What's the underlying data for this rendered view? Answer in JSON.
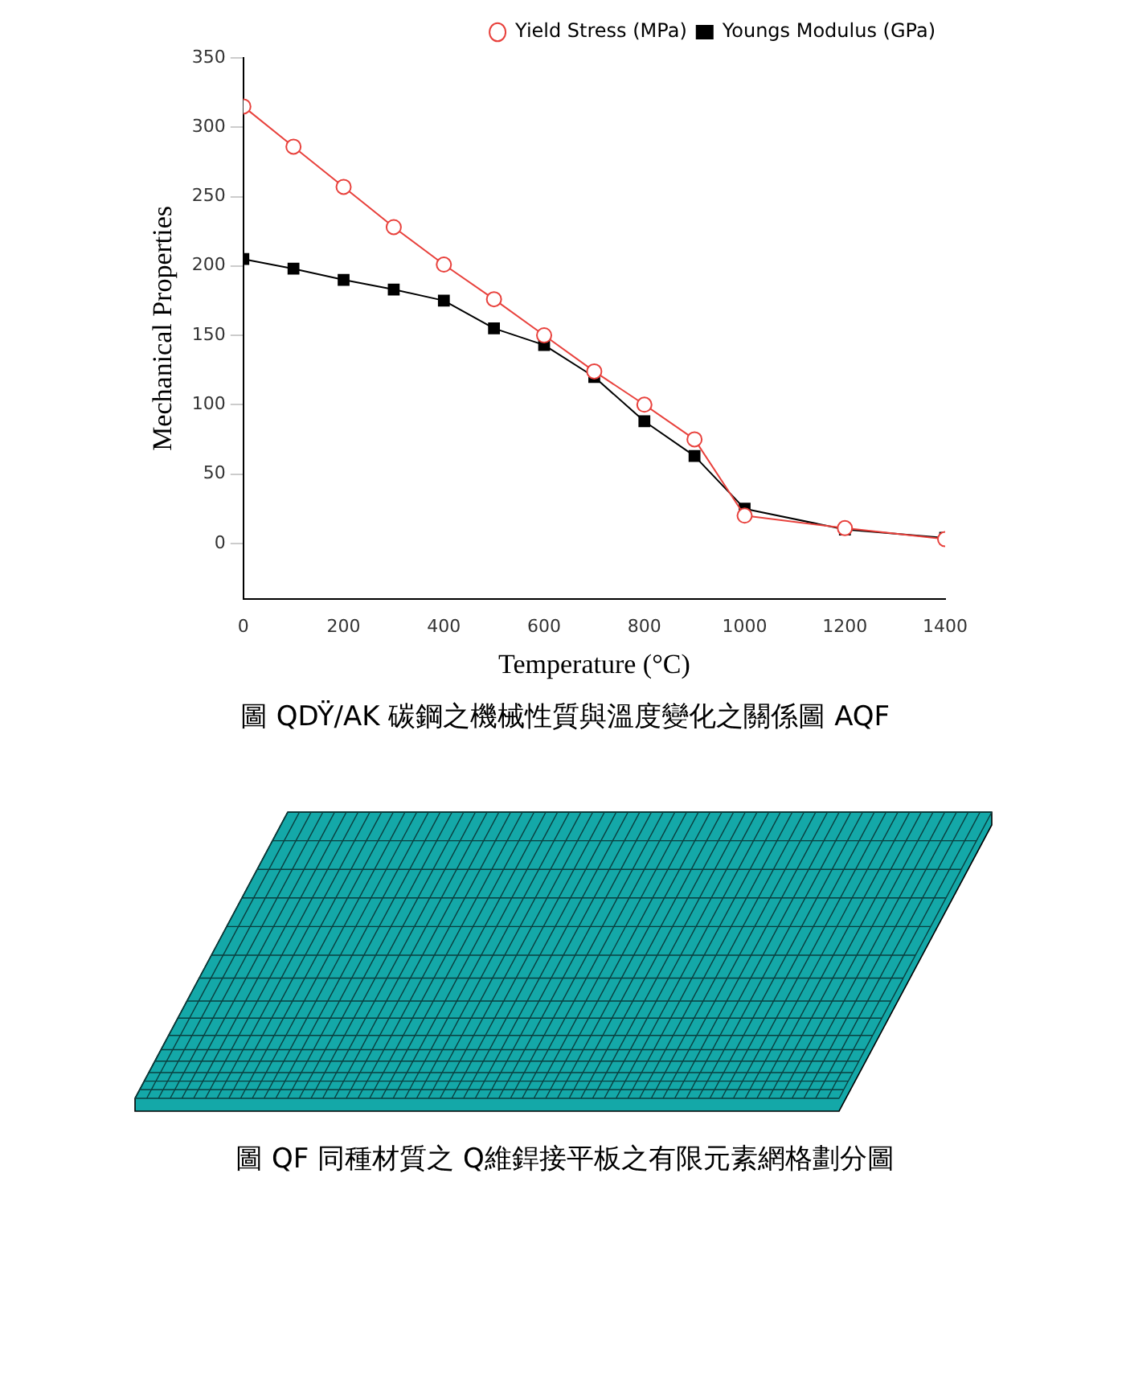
{
  "chart_data": {
    "type": "line",
    "xlabel": "Temperature (°C)",
    "ylabel": "Mechanical Properties",
    "x": [
      0,
      100,
      200,
      300,
      400,
      500,
      600,
      700,
      800,
      900,
      1000,
      1200,
      1400
    ],
    "series": [
      {
        "name": "Youngs Modulus (GPa)",
        "color": "#000000",
        "marker": "square",
        "values": [
          205,
          198,
          190,
          183,
          175,
          155,
          143,
          120,
          88,
          63,
          25,
          10,
          4
        ]
      },
      {
        "name": "Yield Stress (MPa)",
        "color": "#e8413c",
        "marker": "circle",
        "values": [
          315,
          286,
          257,
          228,
          201,
          176,
          150,
          124,
          100,
          75,
          20,
          11,
          3
        ]
      }
    ],
    "xlim": [
      0,
      1400
    ],
    "xticks": [
      0,
      200,
      400,
      600,
      800,
      1000,
      1200,
      1400
    ],
    "ylim": [
      -40,
      350
    ],
    "yticks": [
      0,
      50,
      100,
      150,
      200,
      250,
      300,
      350
    ],
    "grid": false,
    "legend": "top right",
    "line_style": "solid",
    "annotations": [
      "圖 QDŸ/AK 碳鋼之機械性質與溫度變化之關係圖 AQF",
      "圖 QF 同種材質之 Q維銲接平板之有限元素網格劃分圖"
    ]
  }
}
